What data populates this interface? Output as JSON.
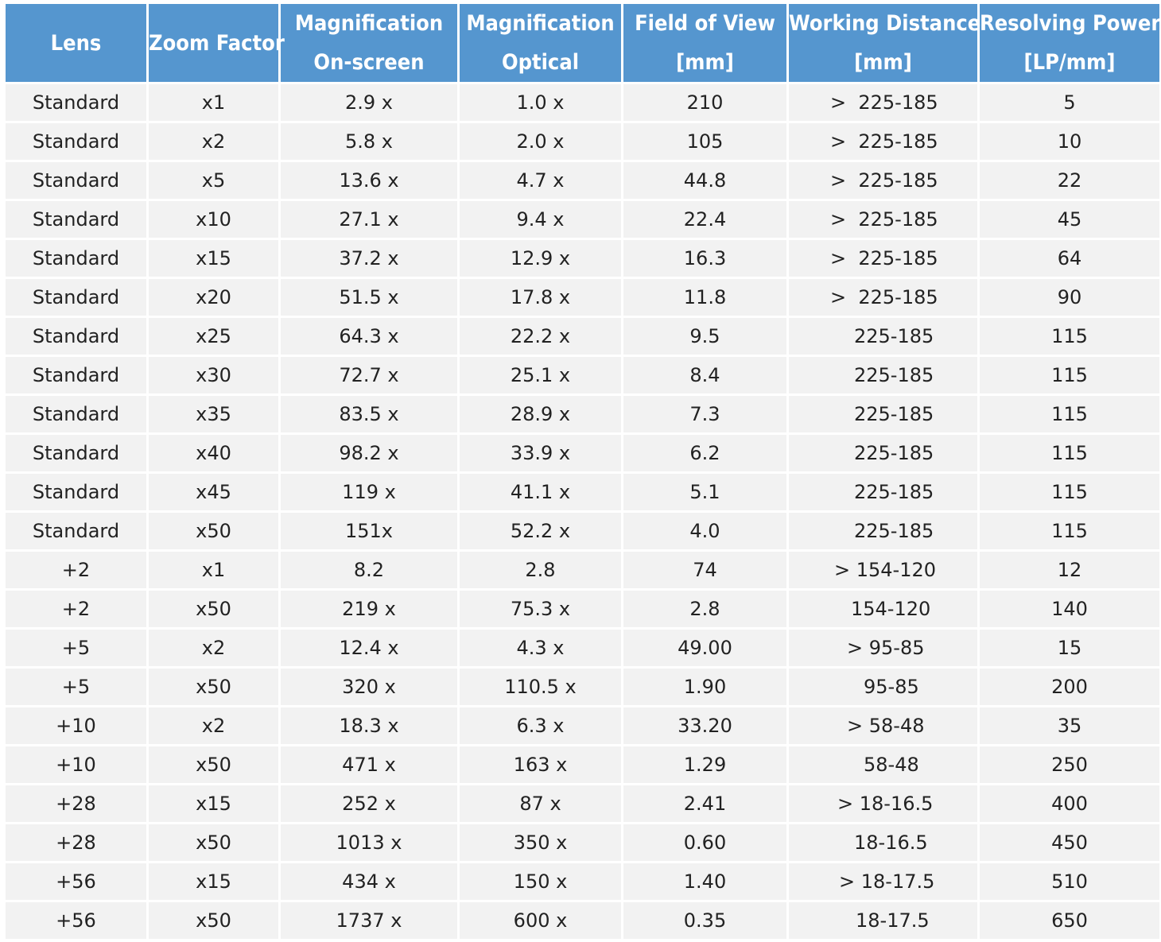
{
  "table": {
    "headers": [
      {
        "line1": "Lens",
        "line2": ""
      },
      {
        "line1": "Zoom Factor",
        "line2": ""
      },
      {
        "line1": "Magnification",
        "line2": "On-screen"
      },
      {
        "line1": "Magnification",
        "line2": "Optical"
      },
      {
        "line1": "Field of View",
        "line2": "[mm]"
      },
      {
        "line1": "Working Distance",
        "line2": "[mm]"
      },
      {
        "line1": "Resolving Power",
        "line2": "[LP/mm]"
      }
    ],
    "rows": [
      [
        "Standard",
        "x1",
        "2.9 x",
        "1.0 x",
        "210",
        ">  225-185",
        "5"
      ],
      [
        "Standard",
        "x2",
        "5.8 x",
        "2.0 x",
        "105",
        ">  225-185",
        "10"
      ],
      [
        "Standard",
        "x5",
        "13.6 x",
        "4.7 x",
        "44.8",
        ">  225-185",
        "22"
      ],
      [
        "Standard",
        "x10",
        "27.1 x",
        "9.4 x",
        "22.4",
        ">  225-185",
        "45"
      ],
      [
        "Standard",
        "x15",
        "37.2 x",
        "12.9 x",
        "16.3",
        ">  225-185",
        "64"
      ],
      [
        "Standard",
        "x20",
        "51.5 x",
        "17.8 x",
        "11.8",
        ">  225-185",
        "90"
      ],
      [
        "Standard",
        "x25",
        "64.3 x",
        "22.2 x",
        "9.5",
        "225-185",
        "115"
      ],
      [
        "Standard",
        "x30",
        "72.7 x",
        "25.1 x",
        "8.4",
        "225-185",
        "115"
      ],
      [
        "Standard",
        "x35",
        "83.5 x",
        "28.9 x",
        "7.3",
        "225-185",
        "115"
      ],
      [
        "Standard",
        "x40",
        "98.2 x",
        "33.9 x",
        "6.2",
        "225-185",
        "115"
      ],
      [
        "Standard",
        "x45",
        "119 x",
        "41.1 x",
        "5.1",
        "225-185",
        "115"
      ],
      [
        "Standard",
        "x50",
        "151x",
        "52.2 x",
        "4.0",
        "225-185",
        "115"
      ],
      [
        "+2",
        "x1",
        "8.2",
        "2.8",
        "74",
        "> 154-120",
        "12"
      ],
      [
        "+2",
        "x50",
        "219 x",
        "75.3 x",
        "2.8",
        "154-120",
        "140"
      ],
      [
        "+5",
        "x2",
        "12.4 x",
        "4.3 x",
        "49.00",
        "> 95-85",
        "15"
      ],
      [
        "+5",
        "x50",
        "320 x",
        "110.5 x",
        "1.90",
        "95-85",
        "200"
      ],
      [
        "+10",
        "x2",
        "18.3 x",
        "6.3 x",
        "33.20",
        "> 58-48",
        "35"
      ],
      [
        "+10",
        "x50",
        "471 x",
        "163 x",
        "1.29",
        "58-48",
        "250"
      ],
      [
        "+28",
        "x15",
        "252 x",
        "87 x",
        "2.41",
        "> 18-16.5",
        "400"
      ],
      [
        "+28",
        "x50",
        "1013 x",
        "350 x",
        "0.60",
        "18-16.5",
        "450"
      ],
      [
        "+56",
        "x15",
        "434 x",
        "150 x",
        "1.40",
        "> 18-17.5",
        "510"
      ],
      [
        "+56",
        "x50",
        "1737 x",
        "600 x",
        "0.35",
        "18-17.5",
        "650"
      ]
    ]
  },
  "colors": {
    "header_bg": "#5596cf",
    "header_text": "#ffffff",
    "cell_bg": "#f2f2f2",
    "cell_text": "#222222"
  }
}
